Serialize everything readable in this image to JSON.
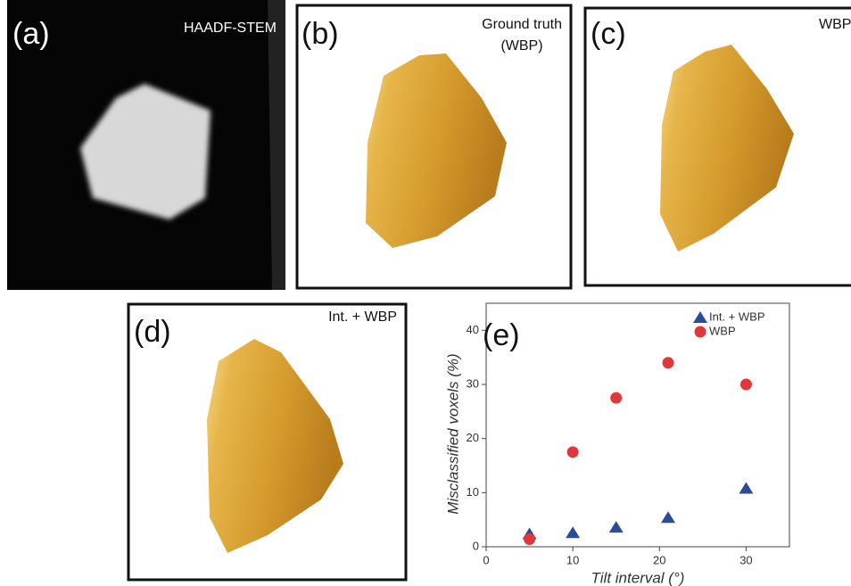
{
  "panels": [
    {
      "label": "(a)",
      "caption": [
        "HAADF-STEM"
      ]
    },
    {
      "label": "(b)",
      "caption": [
        "Ground truth",
        "(WBP)"
      ]
    },
    {
      "label": "(c)",
      "caption": [
        "WBP"
      ]
    },
    {
      "label": "(d)",
      "caption": [
        "Int. + WBP"
      ]
    }
  ],
  "chart_data": {
    "type": "scatter",
    "panel_label": "(e)",
    "x_label": "Tilt interval (°)",
    "y_label": "Misclassified voxels (%)",
    "xlim": [
      0,
      35
    ],
    "xticks": [
      0,
      10,
      20,
      30
    ],
    "ylim": [
      0,
      45
    ],
    "yticks": [
      0,
      10,
      20,
      30,
      40
    ],
    "legend": "top-right",
    "series": [
      {
        "name": "Int. + WBP",
        "color": "#2b4c9b",
        "marker": "triangle",
        "x": [
          5,
          10,
          15,
          21,
          30
        ],
        "values": [
          2.4,
          2.6,
          3.6,
          5.4,
          10.8
        ]
      },
      {
        "name": "WBP",
        "color": "#e0383a",
        "marker": "circle",
        "x": [
          5,
          10,
          15,
          21,
          30
        ],
        "values": [
          1.4,
          17.5,
          27.5,
          34,
          30
        ]
      }
    ]
  }
}
